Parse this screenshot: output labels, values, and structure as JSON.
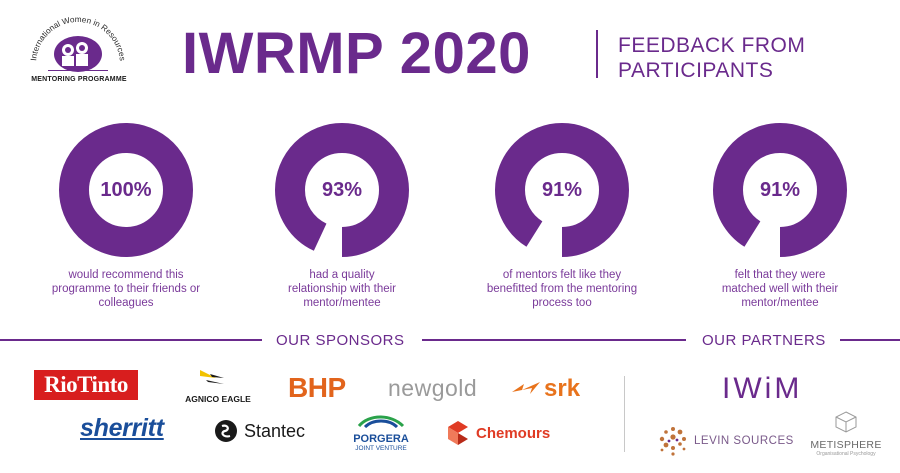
{
  "header": {
    "logo_arc_text": "International Women in Resources",
    "logo_bottom_text": "MENTORING PROGRAMME",
    "title": "IWRMP 2020",
    "subtitle_line1": "FEEDBACK FROM",
    "subtitle_line2": "PARTICIPANTS"
  },
  "stats": [
    {
      "value": 100,
      "label": "100%",
      "caption": [
        "would recommend this",
        "programme to their friends or",
        "colleagues"
      ]
    },
    {
      "value": 93,
      "label": "93%",
      "caption": [
        "had a quality",
        "relationship with their",
        "mentor/mentee"
      ]
    },
    {
      "value": 91,
      "label": "91%",
      "caption": [
        "of mentors felt like they",
        "benefitted from the mentoring",
        "process too"
      ]
    },
    {
      "value": 91,
      "label": "91%",
      "caption": [
        "felt that they were",
        "matched well with their",
        "mentor/mentee"
      ]
    }
  ],
  "sections": {
    "sponsors_label": "OUR SPONSORS",
    "partners_label": "OUR PARTNERS"
  },
  "sponsors": {
    "riotinto": "RioTinto",
    "agnico": "AGNICO EAGLE",
    "bhp": "BHP",
    "newgold": "newgold",
    "srk": "srk",
    "sherritt": "sherritt",
    "stantec": "Stantec",
    "porgera_top": "PORGERA",
    "porgera_bottom": "JOINT VENTURE",
    "chemours": "Chemours"
  },
  "partners": {
    "iwim": "IWiM",
    "levin": "LEVIN SOURCES",
    "metisphere": "METISPHERE",
    "metisphere_sub": "Organisational Psychology"
  },
  "colors": {
    "brand_purple": "#6a2a8c",
    "donut_track": "#ffffff",
    "riotinto_red": "#d81e1e",
    "bhp_orange": "#e2641c",
    "srk_orange": "#e8731c",
    "sherritt_blue": "#1a4e9a",
    "chemours_red": "#e03b24"
  }
}
